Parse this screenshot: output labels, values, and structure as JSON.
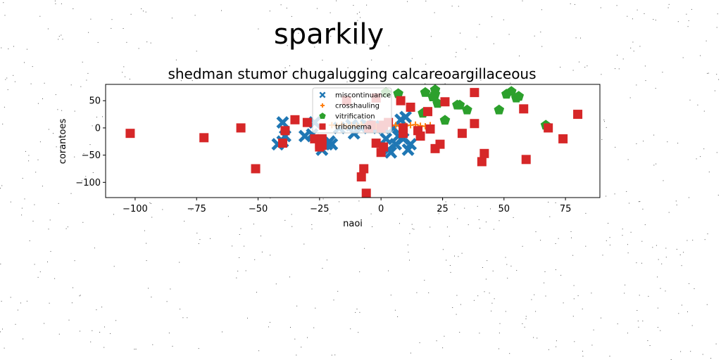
{
  "figure": {
    "suptitle": "sparkily"
  },
  "chart_data": {
    "type": "scatter",
    "title": "shedman stumor chugalugging calcareoargillaceous",
    "xlabel": "naoi",
    "ylabel": "corantoes",
    "xlim": [
      -112,
      89
    ],
    "ylim": [
      -128,
      80
    ],
    "xticks": [
      -100,
      -75,
      -50,
      -25,
      0,
      25,
      50,
      75
    ],
    "yticks": [
      -100,
      -50,
      0,
      50
    ],
    "grid": false,
    "legend_position": "top-center",
    "series": [
      {
        "name": "miscontinuance",
        "marker": "X",
        "color": "#1f77b4",
        "x": [
          -40,
          -39,
          -42,
          -40,
          -31,
          -28,
          -27,
          -24,
          -22,
          -21,
          -20,
          -17,
          -12,
          -11,
          -8,
          -6,
          -5,
          -3,
          -1,
          1,
          2,
          3,
          4,
          5,
          6,
          7,
          8,
          9,
          10,
          11,
          12
        ],
        "y": [
          10,
          -15,
          -30,
          -25,
          -15,
          -12,
          10,
          -40,
          -30,
          -25,
          -30,
          0,
          5,
          -10,
          0,
          5,
          3,
          3,
          0,
          0,
          -20,
          -40,
          -45,
          0,
          -30,
          -15,
          15,
          -20,
          20,
          -40,
          -30
        ]
      },
      {
        "name": "crosshauling",
        "marker": "+",
        "color": "#ff7f0e",
        "x": [
          -20,
          -18,
          -16,
          -14,
          -12,
          -10,
          -8,
          -6,
          -4,
          -2,
          0,
          2,
          4,
          6,
          8,
          10,
          12,
          14,
          16,
          18,
          20
        ],
        "y": [
          5,
          4,
          6,
          3,
          5,
          4,
          6,
          5,
          4,
          3,
          5,
          6,
          4,
          5,
          3,
          4,
          5,
          6,
          4,
          3,
          5
        ]
      },
      {
        "name": "vitrification",
        "marker": "pentagon",
        "color": "#2ca02c",
        "x": [
          2,
          7,
          17,
          18,
          21,
          22,
          22,
          23,
          26,
          31,
          32,
          35,
          48,
          51,
          53,
          55,
          56,
          67
        ],
        "y": [
          65,
          63,
          27,
          65,
          57,
          70,
          62,
          45,
          14,
          42,
          42,
          33,
          33,
          62,
          67,
          55,
          58,
          5
        ]
      },
      {
        "name": "tribonema",
        "marker": "square",
        "color": "#d62728",
        "x": [
          -102,
          -72,
          -57,
          -51,
          -40,
          -39,
          -35,
          -30,
          -27,
          -25,
          -25,
          -24,
          -24,
          -14,
          -8,
          -7,
          -6,
          -5,
          -4,
          -2,
          -2,
          0,
          0,
          1,
          1,
          3,
          8,
          9,
          9,
          12,
          15,
          16,
          19,
          20,
          22,
          24,
          26,
          33,
          38,
          38,
          41,
          42,
          58,
          59,
          68,
          74,
          80
        ],
        "y": [
          -10,
          -18,
          0,
          -75,
          -28,
          -5,
          15,
          10,
          -20,
          -30,
          -35,
          -32,
          -20,
          50,
          -90,
          -75,
          -120,
          0,
          5,
          -28,
          55,
          0,
          -45,
          -35,
          5,
          10,
          50,
          -10,
          0,
          38,
          -5,
          -15,
          30,
          -2,
          -38,
          -30,
          48,
          -10,
          65,
          8,
          -62,
          -47,
          35,
          -58,
          0,
          -20,
          25
        ]
      }
    ]
  }
}
